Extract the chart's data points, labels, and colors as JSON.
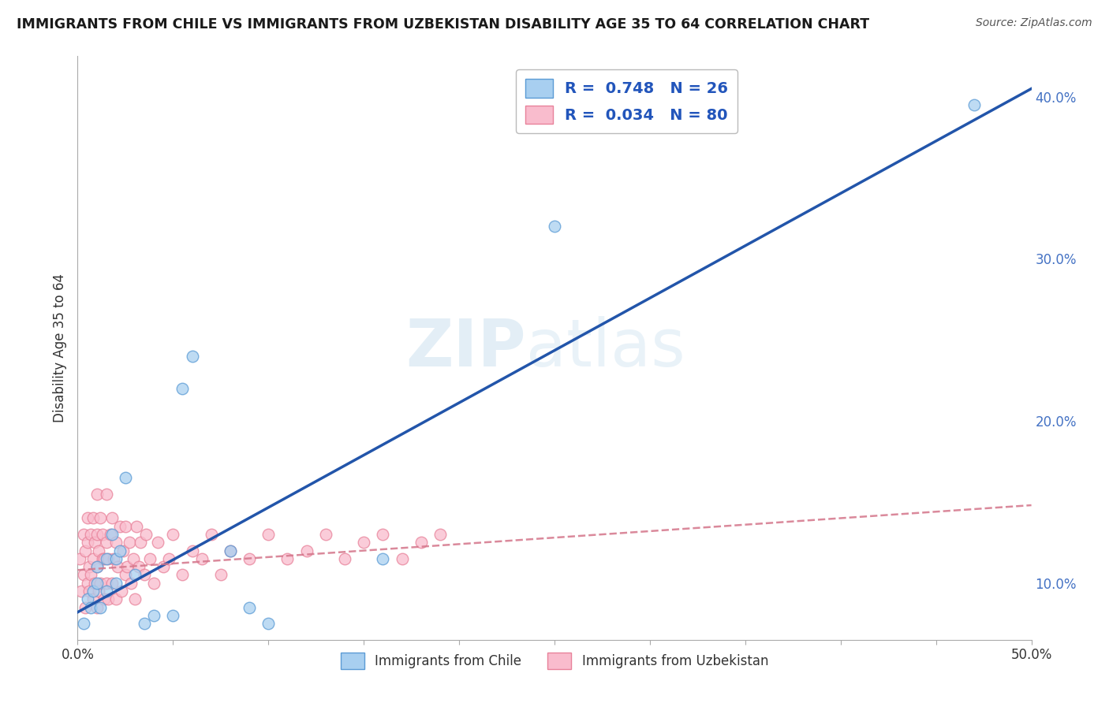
{
  "title": "IMMIGRANTS FROM CHILE VS IMMIGRANTS FROM UZBEKISTAN DISABILITY AGE 35 TO 64 CORRELATION CHART",
  "source": "Source: ZipAtlas.com",
  "ylabel": "Disability Age 35 to 64",
  "watermark_zip": "ZIP",
  "watermark_atlas": "atlas",
  "xlim": [
    0.0,
    0.5
  ],
  "ylim": [
    0.065,
    0.425
  ],
  "xticks": [
    0.0,
    0.05,
    0.1,
    0.15,
    0.2,
    0.25,
    0.3,
    0.35,
    0.4,
    0.45,
    0.5
  ],
  "yticks_right": [
    0.1,
    0.2,
    0.3,
    0.4
  ],
  "yticklabels_right": [
    "10.0%",
    "20.0%",
    "30.0%",
    "40.0%"
  ],
  "chile_R": 0.748,
  "chile_N": 26,
  "uzbek_R": 0.034,
  "uzbek_N": 80,
  "chile_color": "#A8CFF0",
  "uzbek_color": "#F9BCCD",
  "chile_edge_color": "#5B9BD5",
  "uzbek_edge_color": "#E8829A",
  "chile_line_color": "#2255AA",
  "uzbek_line_color": "#D4758A",
  "background_color": "#FFFFFF",
  "grid_color": "#CCCCCC",
  "legend_text_color": "#2255BB",
  "chile_scatter_x": [
    0.003,
    0.005,
    0.007,
    0.008,
    0.01,
    0.01,
    0.012,
    0.015,
    0.015,
    0.018,
    0.02,
    0.02,
    0.022,
    0.025,
    0.03,
    0.035,
    0.04,
    0.05,
    0.055,
    0.06,
    0.08,
    0.09,
    0.1,
    0.16,
    0.25,
    0.47
  ],
  "chile_scatter_y": [
    0.075,
    0.09,
    0.085,
    0.095,
    0.1,
    0.11,
    0.085,
    0.115,
    0.095,
    0.13,
    0.1,
    0.115,
    0.12,
    0.165,
    0.105,
    0.075,
    0.08,
    0.08,
    0.22,
    0.24,
    0.12,
    0.085,
    0.075,
    0.115,
    0.32,
    0.395
  ],
  "uzbek_scatter_x": [
    0.001,
    0.002,
    0.003,
    0.003,
    0.004,
    0.004,
    0.005,
    0.005,
    0.005,
    0.006,
    0.006,
    0.007,
    0.007,
    0.008,
    0.008,
    0.008,
    0.009,
    0.009,
    0.01,
    0.01,
    0.01,
    0.01,
    0.011,
    0.011,
    0.012,
    0.012,
    0.013,
    0.013,
    0.014,
    0.014,
    0.015,
    0.015,
    0.015,
    0.016,
    0.016,
    0.017,
    0.018,
    0.018,
    0.019,
    0.02,
    0.02,
    0.021,
    0.022,
    0.023,
    0.024,
    0.025,
    0.025,
    0.026,
    0.027,
    0.028,
    0.029,
    0.03,
    0.031,
    0.032,
    0.033,
    0.035,
    0.036,
    0.038,
    0.04,
    0.042,
    0.045,
    0.048,
    0.05,
    0.055,
    0.06,
    0.065,
    0.07,
    0.075,
    0.08,
    0.09,
    0.1,
    0.11,
    0.12,
    0.13,
    0.14,
    0.15,
    0.16,
    0.17,
    0.18,
    0.19
  ],
  "uzbek_scatter_y": [
    0.115,
    0.095,
    0.13,
    0.105,
    0.12,
    0.085,
    0.14,
    0.1,
    0.125,
    0.11,
    0.095,
    0.13,
    0.105,
    0.09,
    0.115,
    0.14,
    0.1,
    0.125,
    0.085,
    0.11,
    0.13,
    0.155,
    0.095,
    0.12,
    0.14,
    0.1,
    0.115,
    0.13,
    0.09,
    0.115,
    0.1,
    0.125,
    0.155,
    0.09,
    0.115,
    0.13,
    0.1,
    0.14,
    0.115,
    0.09,
    0.125,
    0.11,
    0.135,
    0.095,
    0.12,
    0.105,
    0.135,
    0.11,
    0.125,
    0.1,
    0.115,
    0.09,
    0.135,
    0.11,
    0.125,
    0.105,
    0.13,
    0.115,
    0.1,
    0.125,
    0.11,
    0.115,
    0.13,
    0.105,
    0.12,
    0.115,
    0.13,
    0.105,
    0.12,
    0.115,
    0.13,
    0.115,
    0.12,
    0.13,
    0.115,
    0.125,
    0.13,
    0.115,
    0.125,
    0.13
  ],
  "chile_line_x0": 0.0,
  "chile_line_y0": 0.082,
  "chile_line_x1": 0.5,
  "chile_line_y1": 0.405,
  "uzbek_line_x0": 0.0,
  "uzbek_line_y0": 0.108,
  "uzbek_line_x1": 0.5,
  "uzbek_line_y1": 0.148
}
